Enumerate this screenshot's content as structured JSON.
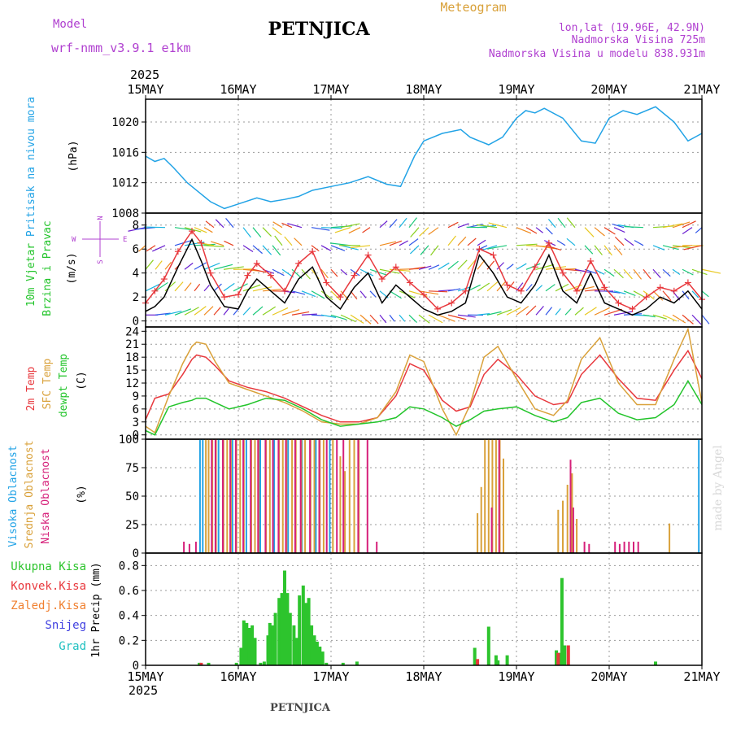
{
  "header": {
    "model_label": "Model",
    "model_name": "wrf-nmm_v3.9.1 e1km",
    "station": "PETNJICA",
    "meteogram_label": "Meteogram",
    "coords": "lon,lat (19.96E, 42.9N)",
    "elevation": "Nadmorska Visina 725m",
    "model_elevation": "Nadmorska Visina u modelu 838.931m",
    "footer_station": "PETNJICA",
    "credit": "made by Angel"
  },
  "colors": {
    "pressure": "#22a3e6",
    "wind_speed": "#000000",
    "wind_gust": "#e8383d",
    "temp_2m": "#e8383d",
    "temp_sfc": "#d9a13a",
    "dewpoint": "#22c42a",
    "cloud_high": "#22a3e6",
    "cloud_mid": "#d9a13a",
    "cloud_low": "#d6207a",
    "total_precip": "#2dc42d",
    "conv_precip": "#e8383d",
    "frozen_precip": "#f08030",
    "snow": "#4040e0",
    "graupel": "#20c0c0",
    "axis_label_purple": "#b040d0",
    "vector_colors": [
      "#6a1fd0",
      "#2f55e8",
      "#18b4e0",
      "#18c878",
      "#8ad020",
      "#e8c820",
      "#f08c20",
      "#e84020"
    ]
  },
  "chart_data": [
    {
      "type": "line",
      "panel": "pressure",
      "ylabel_parts": [
        "Pritisak na nivou mora",
        "(hPa)"
      ],
      "x_ticks": [
        "15MAY",
        "16MAY",
        "17MAY",
        "18MAY",
        "19MAY",
        "20MAY",
        "21MAY"
      ],
      "year": "2025",
      "ylim": [
        1008,
        1023
      ],
      "y_ticks": [
        1008,
        1012,
        1016,
        1020
      ],
      "grid": true,
      "series": [
        {
          "color_key": "pressure",
          "x": [
            0,
            0.1,
            0.2,
            0.3,
            0.45,
            0.6,
            0.7,
            0.85,
            1.0,
            1.2,
            1.35,
            1.5,
            1.65,
            1.8,
            2.0,
            2.2,
            2.4,
            2.6,
            2.75,
            2.9,
            3.0,
            3.2,
            3.4,
            3.5,
            3.7,
            3.85,
            4.0,
            4.1,
            4.2,
            4.3,
            4.5,
            4.7,
            4.85,
            5.0,
            5.15,
            5.3,
            5.5,
            5.7,
            5.85,
            6.0
          ],
          "values": [
            1015.5,
            1014.8,
            1015.2,
            1014.0,
            1012.0,
            1010.5,
            1009.5,
            1008.6,
            1009.2,
            1010.0,
            1009.5,
            1009.8,
            1010.2,
            1011.0,
            1011.5,
            1012.0,
            1012.8,
            1011.8,
            1011.5,
            1015.5,
            1017.5,
            1018.5,
            1019.0,
            1018.0,
            1017.0,
            1018.0,
            1020.5,
            1021.5,
            1021.2,
            1021.8,
            1020.5,
            1017.5,
            1017.2,
            1020.5,
            1021.5,
            1021.0,
            1022.0,
            1020.0,
            1017.5,
            1018.5
          ]
        }
      ]
    },
    {
      "type": "line",
      "panel": "wind",
      "ylabel_parts": [
        "10m Vjetar",
        "Brzina i Pravac",
        "(m/s)"
      ],
      "compass_legend": [
        "N",
        "W",
        "E",
        "S"
      ],
      "ylim": [
        -0.5,
        9
      ],
      "y_ticks": [
        0,
        2,
        4,
        6,
        8
      ],
      "grid": true,
      "series": [
        {
          "name": "",
          "color_key": "wind_speed",
          "x": [
            0,
            0.1,
            0.2,
            0.35,
            0.5,
            0.6,
            0.7,
            0.85,
            1.0,
            1.1,
            1.2,
            1.35,
            1.5,
            1.65,
            1.8,
            1.95,
            2.1,
            2.25,
            2.4,
            2.55,
            2.7,
            2.85,
            3.0,
            3.15,
            3.3,
            3.45,
            3.6,
            3.75,
            3.9,
            4.05,
            4.2,
            4.35,
            4.5,
            4.65,
            4.8,
            4.95,
            5.1,
            5.25,
            5.4,
            5.55,
            5.7,
            5.85,
            6.0
          ],
          "values": [
            0.8,
            1.2,
            2.0,
            4.5,
            6.8,
            5.0,
            3.0,
            1.2,
            1.0,
            2.5,
            3.5,
            2.5,
            1.5,
            3.5,
            4.5,
            2.0,
            1.0,
            2.8,
            4.0,
            1.5,
            3.0,
            2.0,
            1.0,
            0.5,
            0.8,
            1.5,
            5.5,
            4.0,
            2.0,
            1.5,
            3.0,
            5.5,
            2.5,
            1.5,
            4.0,
            1.5,
            1.0,
            0.5,
            1.0,
            2.0,
            1.5,
            2.5,
            1.0
          ]
        },
        {
          "name": "",
          "color_key": "wind_gust",
          "x": [
            0,
            0.1,
            0.2,
            0.35,
            0.5,
            0.6,
            0.7,
            0.85,
            1.0,
            1.1,
            1.2,
            1.35,
            1.5,
            1.65,
            1.8,
            1.95,
            2.1,
            2.25,
            2.4,
            2.55,
            2.7,
            2.85,
            3.0,
            3.15,
            3.3,
            3.45,
            3.6,
            3.75,
            3.9,
            4.05,
            4.2,
            4.35,
            4.5,
            4.65,
            4.8,
            4.95,
            5.1,
            5.25,
            5.4,
            5.55,
            5.7,
            5.85,
            6.0
          ],
          "values": [
            1.5,
            2.5,
            3.5,
            5.8,
            7.5,
            6.5,
            4.0,
            2.0,
            2.2,
            3.8,
            4.8,
            3.8,
            2.5,
            4.8,
            5.8,
            3.2,
            2.0,
            3.8,
            5.5,
            3.5,
            4.5,
            3.2,
            2.2,
            1.0,
            1.5,
            2.5,
            6.0,
            5.5,
            3.0,
            2.5,
            4.5,
            6.5,
            4.0,
            2.5,
            5.0,
            2.8,
            1.5,
            1.0,
            2.0,
            2.8,
            2.5,
            3.2,
            1.8
          ]
        }
      ]
    },
    {
      "type": "line",
      "panel": "temperature",
      "ylabel_parts": [
        "2m Temp",
        "SFC Temp",
        "dewpt Temp",
        "(C)"
      ],
      "ylim": [
        -1,
        25
      ],
      "y_ticks": [
        0,
        3,
        6,
        9,
        12,
        15,
        18,
        21,
        24
      ],
      "grid": true,
      "series": [
        {
          "name": "2m Temp",
          "color_key": "temp_2m",
          "x": [
            0,
            0.1,
            0.25,
            0.4,
            0.5,
            0.55,
            0.65,
            0.75,
            0.9,
            1.1,
            1.3,
            1.5,
            1.7,
            1.9,
            2.1,
            2.3,
            2.5,
            2.7,
            2.85,
            3.0,
            3.2,
            3.35,
            3.5,
            3.65,
            3.8,
            4.0,
            4.2,
            4.4,
            4.55,
            4.7,
            4.9,
            5.1,
            5.3,
            5.5,
            5.7,
            5.85,
            6.0
          ],
          "values": [
            3.5,
            8.5,
            9.5,
            14.0,
            17.5,
            18.5,
            18.0,
            16.0,
            12.5,
            11.0,
            10.0,
            8.5,
            6.5,
            4.5,
            3.0,
            3.0,
            4.0,
            9.0,
            16.5,
            15.0,
            8.0,
            5.5,
            6.5,
            14.0,
            17.5,
            14.0,
            9.0,
            7.0,
            7.5,
            14.0,
            18.5,
            13.0,
            8.5,
            8.0,
            15.0,
            19.5,
            13.0
          ]
        },
        {
          "name": "SFC Temp",
          "color_key": "temp_sfc",
          "x": [
            0,
            0.1,
            0.25,
            0.4,
            0.5,
            0.55,
            0.65,
            0.75,
            0.9,
            1.1,
            1.3,
            1.5,
            1.7,
            1.9,
            2.1,
            2.3,
            2.5,
            2.7,
            2.85,
            3.0,
            3.2,
            3.35,
            3.5,
            3.65,
            3.8,
            4.0,
            4.2,
            4.4,
            4.55,
            4.7,
            4.9,
            5.1,
            5.3,
            5.5,
            5.7,
            5.85,
            6.0
          ],
          "values": [
            2.0,
            0.5,
            9.0,
            16.5,
            20.5,
            21.5,
            21.0,
            17.0,
            12.0,
            10.5,
            9.0,
            7.5,
            5.5,
            3.0,
            2.5,
            2.5,
            4.0,
            10.0,
            18.5,
            17.0,
            6.0,
            0.0,
            7.0,
            18.0,
            20.5,
            13.0,
            6.0,
            4.5,
            8.0,
            17.5,
            22.5,
            12.0,
            7.0,
            7.0,
            17.5,
            24.5,
            7.5
          ]
        },
        {
          "name": "dewpt Temp",
          "color_key": "dewpoint",
          "x": [
            0,
            0.1,
            0.25,
            0.4,
            0.5,
            0.55,
            0.65,
            0.75,
            0.9,
            1.1,
            1.3,
            1.5,
            1.7,
            1.9,
            2.1,
            2.3,
            2.5,
            2.7,
            2.85,
            3.0,
            3.2,
            3.35,
            3.5,
            3.65,
            3.8,
            4.0,
            4.2,
            4.4,
            4.55,
            4.7,
            4.9,
            5.1,
            5.3,
            5.5,
            5.7,
            5.85,
            6.0
          ],
          "values": [
            1.0,
            0.0,
            6.5,
            7.5,
            8.0,
            8.5,
            8.5,
            7.5,
            6.0,
            7.0,
            8.5,
            8.0,
            6.0,
            3.5,
            2.0,
            2.5,
            3.0,
            4.0,
            6.5,
            6.0,
            4.0,
            2.0,
            3.5,
            5.5,
            6.0,
            6.5,
            4.5,
            3.0,
            4.0,
            7.5,
            8.5,
            5.0,
            3.5,
            4.0,
            7.0,
            12.5,
            7.0
          ]
        }
      ]
    },
    {
      "type": "bar",
      "panel": "cloud",
      "ylabel_parts": [
        "Visoka Oblacnost",
        "Srednja Oblacnost",
        "Niska Oblacnost",
        "(%)"
      ],
      "ylim": [
        0,
        100
      ],
      "y_ticks": [
        0,
        25,
        50,
        75,
        100
      ],
      "grid": true,
      "series": [
        {
          "name": "Visoka Oblacnost",
          "color_key": "cloud_high",
          "x": [
            0.6,
            0.63,
            0.8,
            0.95,
            1.1,
            1.25,
            1.4,
            1.55,
            1.7,
            1.85,
            2.0,
            5.98
          ],
          "values": [
            100,
            100,
            100,
            100,
            100,
            100,
            100,
            100,
            100,
            100,
            100,
            100
          ]
        },
        {
          "name": "Srednja Oblacnost",
          "color_key": "cloud_mid",
          "x": [
            0.65,
            0.68,
            0.72,
            0.76,
            0.84,
            0.88,
            0.92,
            0.98,
            1.02,
            1.06,
            1.14,
            1.18,
            1.22,
            1.3,
            1.34,
            1.44,
            1.48,
            1.52,
            1.58,
            1.62,
            1.68,
            1.72,
            1.78,
            1.82,
            1.88,
            1.92,
            2.02,
            2.1,
            2.15,
            2.2,
            2.25,
            2.3,
            3.58,
            3.62,
            3.66,
            3.7,
            3.74,
            3.78,
            3.82,
            3.86,
            4.45,
            4.5,
            4.55,
            4.6,
            4.65,
            5.65
          ],
          "values": [
            100,
            100,
            100,
            100,
            100,
            100,
            100,
            100,
            100,
            100,
            100,
            100,
            100,
            100,
            100,
            100,
            100,
            100,
            100,
            100,
            100,
            100,
            100,
            100,
            100,
            100,
            100,
            85,
            72,
            100,
            100,
            100,
            35,
            58,
            100,
            100,
            100,
            100,
            100,
            83,
            38,
            46,
            60,
            70,
            30,
            26
          ]
        },
        {
          "name": "Niska Oblacnost",
          "color_key": "cloud_low",
          "x": [
            0.4,
            0.46,
            0.53,
            0.7,
            0.74,
            0.82,
            0.9,
            0.96,
            1.04,
            1.12,
            1.2,
            1.28,
            1.36,
            1.42,
            1.5,
            1.6,
            1.66,
            1.76,
            1.86,
            1.94,
            2.05,
            2.12,
            2.28,
            2.38,
            2.48,
            3.72,
            3.8,
            4.57,
            4.6,
            4.72,
            4.77,
            5.05,
            5.1,
            5.15,
            5.2,
            5.25,
            5.3
          ],
          "values": [
            10,
            8,
            10,
            100,
            100,
            100,
            100,
            100,
            100,
            100,
            100,
            100,
            100,
            100,
            100,
            100,
            100,
            100,
            100,
            100,
            100,
            100,
            100,
            100,
            10,
            40,
            100,
            82,
            40,
            10,
            8,
            10,
            8,
            10,
            10,
            10,
            10
          ]
        }
      ]
    },
    {
      "type": "bar",
      "panel": "precip",
      "ylabel_parts": [
        "1hr Precip (mm)"
      ],
      "legend": [
        "Ukupna Kisa",
        "Konvek.Kisa",
        "Zaledj.Kisa",
        "Snijeg",
        "Grad"
      ],
      "x_ticks": [
        "15MAY",
        "16MAY",
        "17MAY",
        "18MAY",
        "19MAY",
        "20MAY",
        "21MAY"
      ],
      "year": "2025",
      "ylim": [
        0,
        0.9
      ],
      "y_ticks": [
        0,
        0.2,
        0.4,
        0.6,
        0.8
      ],
      "grid": true,
      "series": [
        {
          "name": "Ukupna Kisa",
          "color_key": "total_precip",
          "x": [
            0.58,
            0.68,
            0.98,
            1.03,
            1.06,
            1.09,
            1.12,
            1.15,
            1.18,
            1.24,
            1.28,
            1.32,
            1.34,
            1.37,
            1.4,
            1.44,
            1.47,
            1.5,
            1.53,
            1.56,
            1.6,
            1.63,
            1.66,
            1.7,
            1.73,
            1.76,
            1.79,
            1.82,
            1.85,
            1.88,
            1.91,
            1.95,
            2.13,
            2.28,
            3.55,
            3.7,
            3.78,
            3.8,
            3.9,
            4.43,
            4.46,
            4.49,
            4.52,
            5.5
          ],
          "values": [
            0.02,
            0.02,
            0.02,
            0.14,
            0.36,
            0.34,
            0.3,
            0.32,
            0.22,
            0.02,
            0.03,
            0.24,
            0.34,
            0.32,
            0.42,
            0.54,
            0.58,
            0.76,
            0.58,
            0.42,
            0.32,
            0.22,
            0.56,
            0.64,
            0.5,
            0.54,
            0.32,
            0.24,
            0.19,
            0.15,
            0.11,
            0.02,
            0.02,
            0.03,
            0.14,
            0.31,
            0.08,
            0.04,
            0.08,
            0.12,
            0.1,
            0.7,
            0.16,
            0.03
          ]
        },
        {
          "name": "Konvek.Kisa",
          "color_key": "conv_precip",
          "x": [
            0.6,
            3.58,
            4.45,
            4.56
          ],
          "values": [
            0.02,
            0.05,
            0.1,
            0.16
          ]
        }
      ]
    }
  ]
}
